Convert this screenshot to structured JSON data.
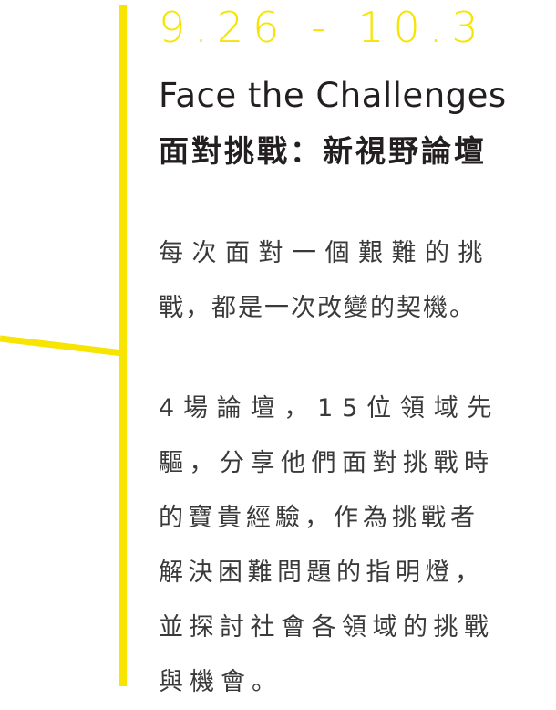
{
  "colors": {
    "accent": "#f7e400",
    "text_dark": "#231f20",
    "text_body": "#3a3a3a"
  },
  "header": {
    "date_range": "9.26 - 10.3",
    "title_en": "Face the Challenges",
    "title_zh": "面對挑戰：新視野論壇"
  },
  "body": {
    "paragraph1_lines": [
      "每次面對一個艱難的挑",
      "戰，都是一次改變的契機。"
    ],
    "paragraph2_lines": [
      "4場論壇，15位領域先",
      "驅，分享他們面對挑戰時",
      "的寶貴經驗，作為挑戰者",
      "解決困難問題的指明燈，",
      "並探討社會各領域的挑戰",
      "與機會。"
    ]
  }
}
